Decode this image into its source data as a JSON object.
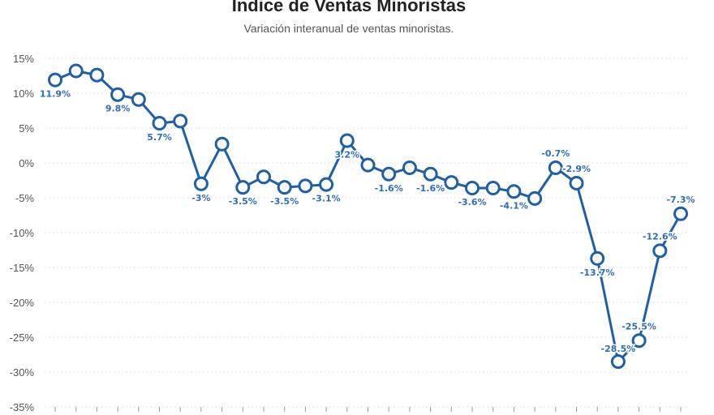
{
  "title": "Índice de Ventas Minoristas",
  "subtitle": "Variación interanual de ventas minoristas.",
  "colors": {
    "line": "#1f5fa6",
    "label": "#2f6db5",
    "grid": "#e3e3e3",
    "point_fill": "#ffffff"
  },
  "chart_data": {
    "type": "line",
    "title": "Índice de Ventas Minoristas",
    "subtitle": "Variación interanual de ventas minoristas.",
    "xlabel": "",
    "ylabel": "",
    "ylim": [
      -35,
      15
    ],
    "yticks": [
      15,
      10,
      5,
      0,
      -5,
      -10,
      -15,
      -20,
      -25,
      -30,
      -35
    ],
    "ytick_labels": [
      "15%",
      "10%",
      "5%",
      "0%",
      "-5%",
      "-10%",
      "-15%",
      "-20%",
      "-25%",
      "-30%",
      "-35%"
    ],
    "grid": true,
    "legend": "none",
    "values": [
      11.9,
      13.2,
      12.6,
      9.8,
      9.1,
      5.7,
      6.0,
      -3.0,
      2.7,
      -3.5,
      -2.0,
      -3.5,
      -3.3,
      -3.1,
      3.2,
      -0.3,
      -1.6,
      -0.7,
      -1.6,
      -2.8,
      -3.6,
      -3.6,
      -4.1,
      -5.1,
      -0.7,
      -2.9,
      -13.7,
      -28.5,
      -25.5,
      -12.6,
      -7.3
    ],
    "data_labels": [
      {
        "index": 0,
        "text": "11.9%"
      },
      {
        "index": 3,
        "text": "9.8%"
      },
      {
        "index": 5,
        "text": "5.7%"
      },
      {
        "index": 7,
        "text": "-3%"
      },
      {
        "index": 9,
        "text": "-3.5%"
      },
      {
        "index": 11,
        "text": "-3.5%"
      },
      {
        "index": 13,
        "text": "-3.1%"
      },
      {
        "index": 14,
        "text": "3.2%"
      },
      {
        "index": 16,
        "text": "-1.6%"
      },
      {
        "index": 18,
        "text": "-1.6%"
      },
      {
        "index": 20,
        "text": "-3.6%"
      },
      {
        "index": 22,
        "text": "-4.1%"
      },
      {
        "index": 24,
        "text": "-0.7%"
      },
      {
        "index": 25,
        "text": "-2.9%"
      },
      {
        "index": 26,
        "text": "-13.7%"
      },
      {
        "index": 27,
        "text": "-28.5%"
      },
      {
        "index": 28,
        "text": "-25.5%"
      },
      {
        "index": 29,
        "text": "-12.6%"
      },
      {
        "index": 30,
        "text": "-7.3%"
      }
    ]
  }
}
